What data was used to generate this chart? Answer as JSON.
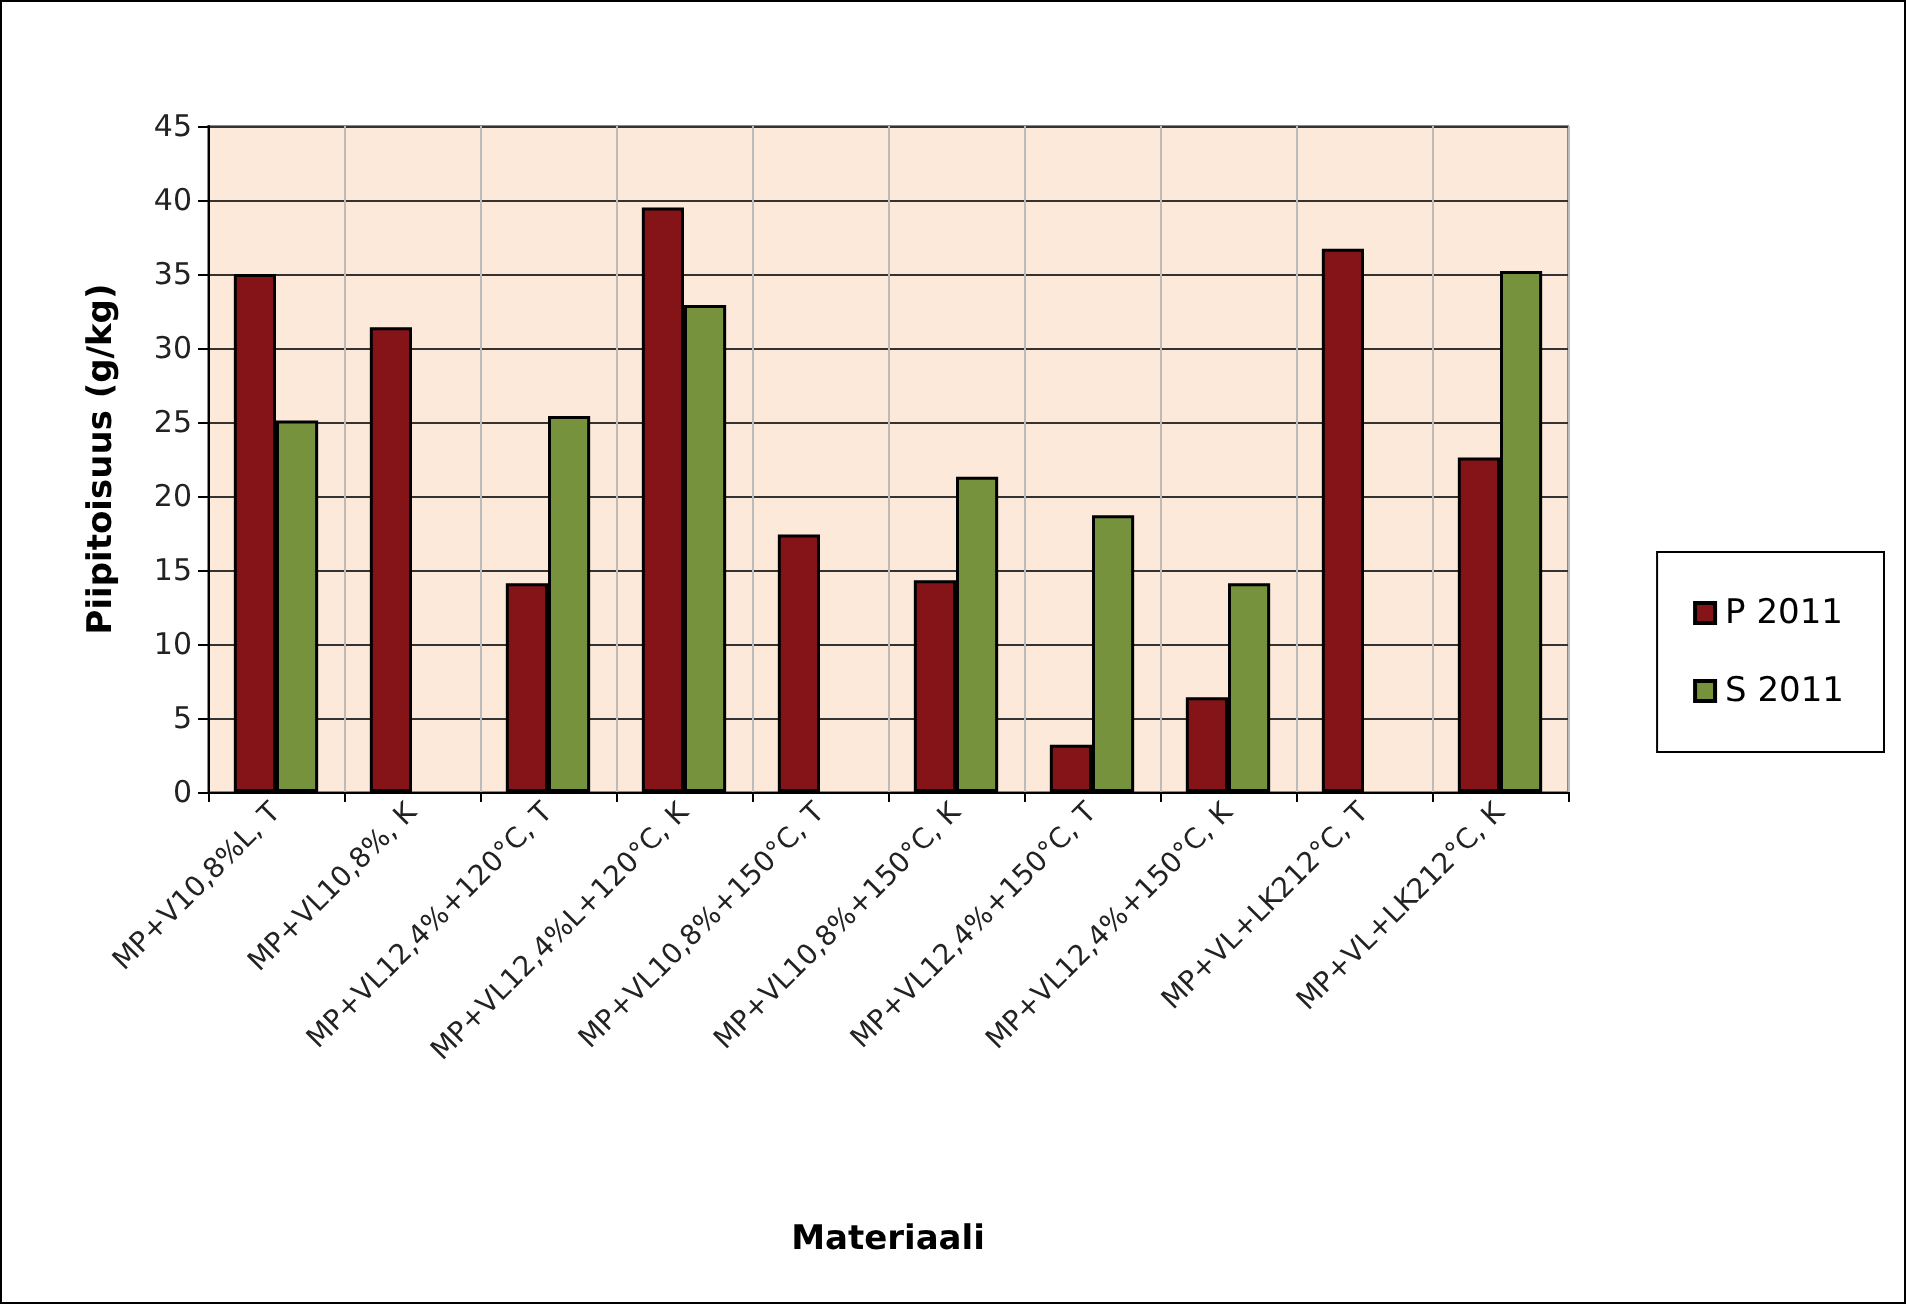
{
  "chart_data": {
    "type": "bar",
    "xlabel": "Materiaali",
    "ylabel": "Piipitoisuus (g/kg)",
    "categories": [
      "MP+V10,8%L, T",
      "MP+VL10,8%, K",
      "MP+VL12,4%+120°C, T",
      "MP+VL12,4%L+120°C, K",
      "MP+VL10,8%+150°C, T",
      "MP+VL10,8%+150°C, K",
      "MP+VL12,4%+150°C, T",
      "MP+VL12,4%+150°C, K",
      "MP+VL+LK212°C, T",
      "MP+VL+LK212°C, K"
    ],
    "series": [
      {
        "name": "P 2011",
        "color": "#841418",
        "values": [
          35,
          31.4,
          14.1,
          39.5,
          17.4,
          14.3,
          3.2,
          6.4,
          36.7,
          22.6
        ]
      },
      {
        "name": "S 2011",
        "color": "#76923c",
        "values": [
          25.1,
          null,
          25.4,
          32.9,
          null,
          21.3,
          18.7,
          14.1,
          null,
          35.2
        ]
      }
    ],
    "ylim": [
      0,
      45
    ],
    "yticks": [
      0,
      5,
      10,
      15,
      20,
      25,
      30,
      35,
      40,
      45
    ],
    "grid": true,
    "legend": "right"
  }
}
